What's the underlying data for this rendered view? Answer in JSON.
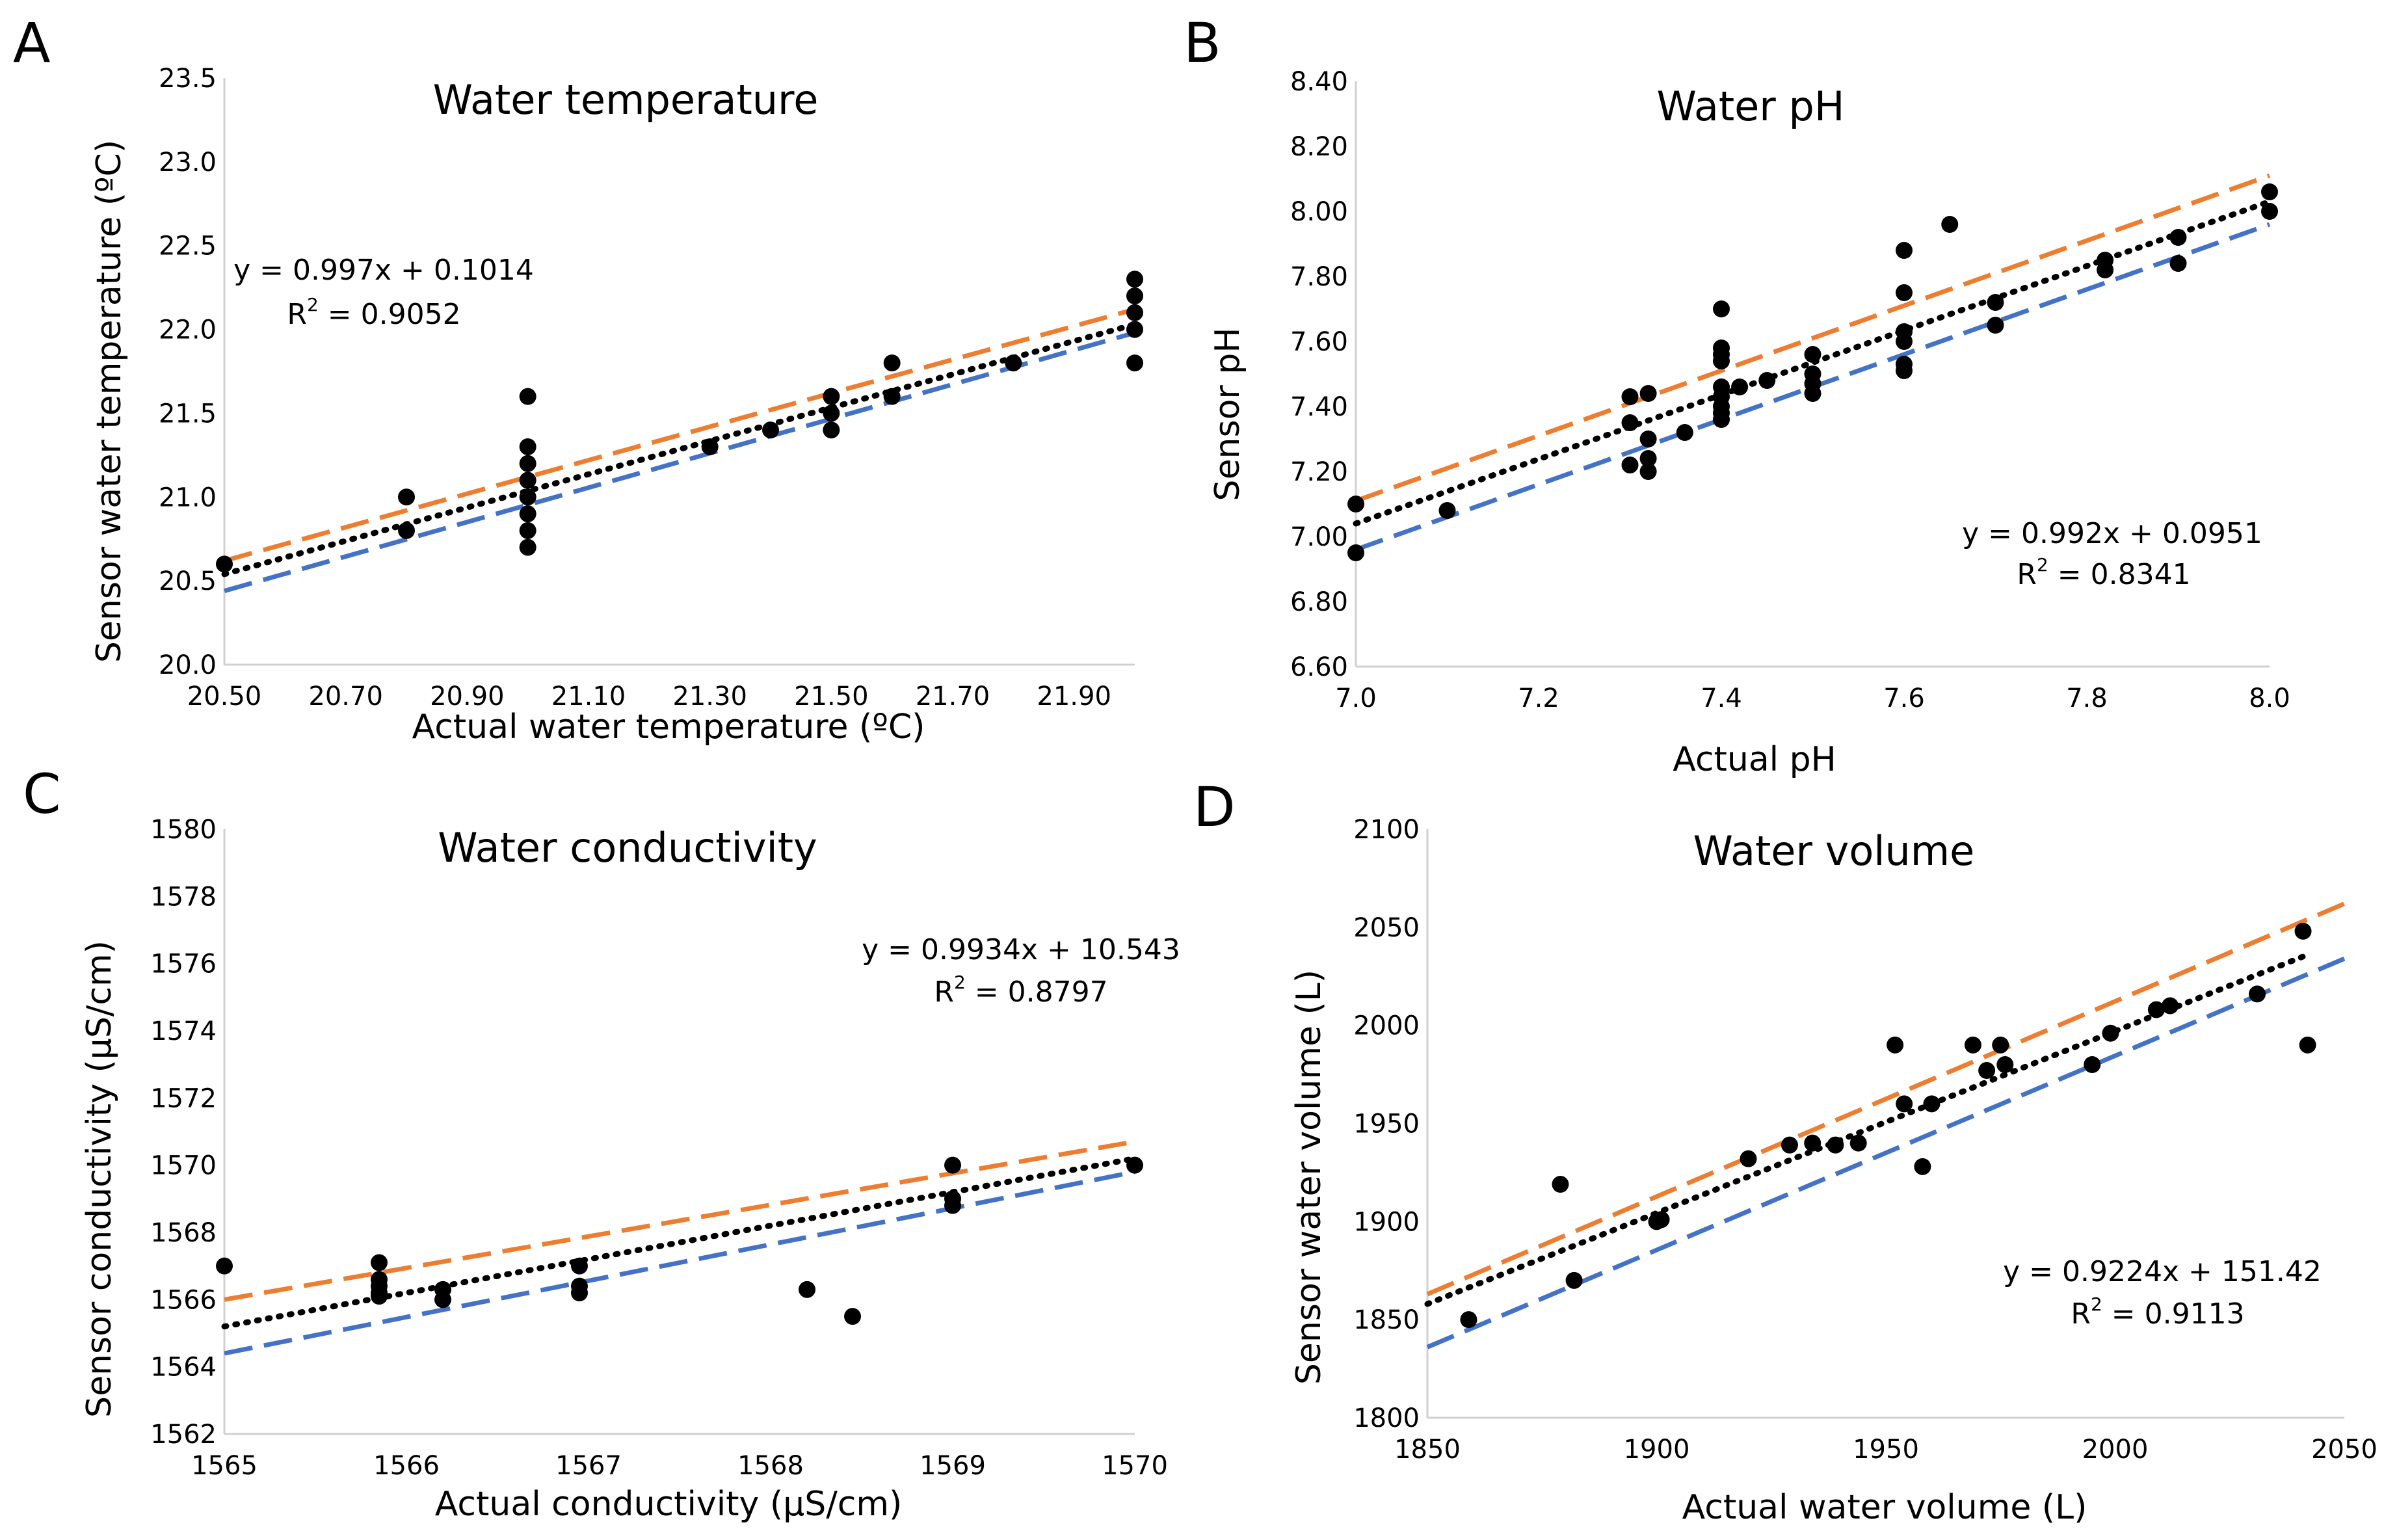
{
  "chart_data": [
    {
      "panel": "A",
      "type": "scatter",
      "title": "Water temperature",
      "xlabel": "Actual water temperature (ºC)",
      "ylabel": "Sensor water temperature (ºC)",
      "xlim": [
        20.5,
        22.0
      ],
      "ylim": [
        20.0,
        23.5
      ],
      "xticks": [
        20.5,
        20.7,
        20.9,
        21.1,
        21.3,
        21.5,
        21.7,
        21.9
      ],
      "xtick_labels": [
        "20.50",
        "20.70",
        "20.90",
        "21.10",
        "21.30",
        "21.50",
        "21.70",
        "21.90"
      ],
      "yticks": [
        20.0,
        20.5,
        21.0,
        21.5,
        22.0,
        22.5,
        23.0,
        23.5
      ],
      "ytick_labels": [
        "20.0",
        "20.5",
        "21.0",
        "21.5",
        "22.0",
        "22.5",
        "23.0",
        "23.5"
      ],
      "equation": "y = 0.997x + 0.1014",
      "r2_label": "R",
      "r2_sup": "2",
      "r2_value": " = 0.9052",
      "points": [
        [
          20.5,
          20.6
        ],
        [
          20.8,
          21.0
        ],
        [
          20.8,
          20.8
        ],
        [
          21.0,
          21.6
        ],
        [
          21.0,
          21.3
        ],
        [
          21.0,
          21.2
        ],
        [
          21.0,
          21.1
        ],
        [
          21.0,
          21.0
        ],
        [
          21.0,
          20.9
        ],
        [
          21.0,
          20.8
        ],
        [
          21.0,
          20.7
        ],
        [
          21.3,
          21.3
        ],
        [
          21.4,
          21.4
        ],
        [
          21.5,
          21.6
        ],
        [
          21.5,
          21.5
        ],
        [
          21.5,
          21.4
        ],
        [
          21.6,
          21.8
        ],
        [
          21.6,
          21.6
        ],
        [
          21.8,
          21.8
        ],
        [
          22.0,
          22.3
        ],
        [
          22.0,
          22.2
        ],
        [
          22.0,
          22.1
        ],
        [
          22.0,
          22.0
        ],
        [
          22.0,
          21.8
        ]
      ],
      "lines": [
        {
          "name": "upper bound",
          "color": "#ED7D31",
          "style": "dashed",
          "x": [
            20.5,
            22.0
          ],
          "y": [
            20.62,
            22.12
          ]
        },
        {
          "name": "trendline",
          "color": "#000000",
          "style": "dotted",
          "x": [
            20.5,
            22.0
          ],
          "y": [
            20.54,
            22.03
          ]
        },
        {
          "name": "lower bound",
          "color": "#4472C4",
          "style": "dashed",
          "x": [
            20.5,
            22.0
          ],
          "y": [
            20.44,
            21.98
          ]
        }
      ]
    },
    {
      "panel": "B",
      "type": "scatter",
      "title": "Water pH",
      "xlabel": "Actual pH",
      "ylabel": "Sensor pH",
      "xlim": [
        7.0,
        8.0
      ],
      "ylim": [
        6.6,
        8.4
      ],
      "xticks": [
        7.0,
        7.2,
        7.4,
        7.6,
        7.8,
        8.0
      ],
      "xtick_labels": [
        "7.0",
        "7.2",
        "7.4",
        "7.6",
        "7.8",
        "8.0"
      ],
      "yticks": [
        6.6,
        6.8,
        7.0,
        7.2,
        7.4,
        7.6,
        7.8,
        8.0,
        8.2,
        8.4
      ],
      "ytick_labels": [
        "6.60",
        "6.80",
        "7.00",
        "7.20",
        "7.40",
        "7.60",
        "7.80",
        "8.00",
        "8.20",
        "8.40"
      ],
      "equation": "y = 0.992x + 0.0951",
      "r2_label": "R",
      "r2_sup": "2",
      "r2_value": " = 0.8341",
      "points": [
        [
          7.0,
          7.1
        ],
        [
          7.0,
          6.95
        ],
        [
          7.1,
          7.08
        ],
        [
          7.3,
          7.43
        ],
        [
          7.3,
          7.35
        ],
        [
          7.3,
          7.22
        ],
        [
          7.32,
          7.44
        ],
        [
          7.32,
          7.3
        ],
        [
          7.32,
          7.24
        ],
        [
          7.32,
          7.2
        ],
        [
          7.36,
          7.32
        ],
        [
          7.4,
          7.7
        ],
        [
          7.4,
          7.58
        ],
        [
          7.4,
          7.56
        ],
        [
          7.4,
          7.54
        ],
        [
          7.4,
          7.46
        ],
        [
          7.4,
          7.43
        ],
        [
          7.4,
          7.4
        ],
        [
          7.4,
          7.38
        ],
        [
          7.4,
          7.36
        ],
        [
          7.42,
          7.46
        ],
        [
          7.45,
          7.48
        ],
        [
          7.5,
          7.56
        ],
        [
          7.5,
          7.5
        ],
        [
          7.5,
          7.47
        ],
        [
          7.5,
          7.44
        ],
        [
          7.6,
          7.88
        ],
        [
          7.6,
          7.75
        ],
        [
          7.6,
          7.63
        ],
        [
          7.6,
          7.6
        ],
        [
          7.6,
          7.53
        ],
        [
          7.6,
          7.51
        ],
        [
          7.65,
          7.96
        ],
        [
          7.7,
          7.72
        ],
        [
          7.7,
          7.65
        ],
        [
          7.82,
          7.85
        ],
        [
          7.82,
          7.82
        ],
        [
          7.9,
          7.92
        ],
        [
          7.9,
          7.84
        ],
        [
          8.0,
          8.06
        ],
        [
          8.0,
          8.0
        ]
      ],
      "lines": [
        {
          "name": "upper bound",
          "color": "#ED7D31",
          "style": "dashed",
          "x": [
            7.0,
            8.0
          ],
          "y": [
            7.11,
            8.11
          ]
        },
        {
          "name": "trendline",
          "color": "#000000",
          "style": "dotted",
          "x": [
            7.0,
            8.0
          ],
          "y": [
            7.04,
            8.03
          ]
        },
        {
          "name": "lower bound",
          "color": "#4472C4",
          "style": "dashed",
          "x": [
            7.0,
            8.0
          ],
          "y": [
            6.96,
            7.96
          ]
        }
      ]
    },
    {
      "panel": "C",
      "type": "scatter",
      "title": "Water conductivity",
      "xlabel": "Actual conductivity (µS/cm)",
      "ylabel": "Sensor conductivity (µS/cm)",
      "xlim": [
        1565,
        1570
      ],
      "ylim": [
        1562,
        1580
      ],
      "xticks": [
        1565,
        1566,
        1567,
        1568,
        1569,
        1570
      ],
      "xtick_labels": [
        "1565",
        "1566",
        "1567",
        "1568",
        "1569",
        "1570"
      ],
      "yticks": [
        1562,
        1564,
        1566,
        1568,
        1570,
        1572,
        1574,
        1576,
        1578,
        1580
      ],
      "ytick_labels": [
        "1562",
        "1564",
        "1566",
        "1568",
        "1570",
        "1572",
        "1574",
        "1576",
        "1578",
        "1580"
      ],
      "equation": "y = 0.9934x + 10.543",
      "r2_label": "R",
      "r2_sup": "2",
      "r2_value": " = 0.8797",
      "points": [
        [
          1565.0,
          1567.0
        ],
        [
          1565.85,
          1567.1
        ],
        [
          1565.85,
          1566.6
        ],
        [
          1565.85,
          1566.4
        ],
        [
          1565.85,
          1566.2
        ],
        [
          1565.85,
          1566.1
        ],
        [
          1566.2,
          1566.3
        ],
        [
          1566.2,
          1566.0
        ],
        [
          1566.95,
          1567.0
        ],
        [
          1566.95,
          1566.4
        ],
        [
          1566.95,
          1566.2
        ],
        [
          1568.2,
          1566.3
        ],
        [
          1568.45,
          1565.5
        ],
        [
          1569.0,
          1570.0
        ],
        [
          1569.0,
          1569.0
        ],
        [
          1569.0,
          1568.8
        ],
        [
          1570.0,
          1570.0
        ]
      ],
      "lines": [
        {
          "name": "upper bound",
          "color": "#ED7D31",
          "style": "dashed",
          "x": [
            1565,
            1570
          ],
          "y": [
            1566.0,
            1570.7
          ]
        },
        {
          "name": "trendline",
          "color": "#000000",
          "style": "dotted",
          "x": [
            1565,
            1570
          ],
          "y": [
            1565.2,
            1570.2
          ]
        },
        {
          "name": "lower bound",
          "color": "#4472C4",
          "style": "dashed",
          "x": [
            1565,
            1570
          ],
          "y": [
            1564.4,
            1569.8
          ]
        }
      ]
    },
    {
      "panel": "D",
      "type": "scatter",
      "title": "Water volume",
      "xlabel": "Actual water volume (L)",
      "ylabel": "Sensor water volume (L)",
      "xlim": [
        1850,
        2050
      ],
      "ylim": [
        1800,
        2100
      ],
      "xticks": [
        1850,
        1900,
        1950,
        2000,
        2050
      ],
      "xtick_labels": [
        "1850",
        "1900",
        "1950",
        "2000",
        "2050"
      ],
      "yticks": [
        1800,
        1850,
        1900,
        1950,
        2000,
        2050,
        2100
      ],
      "ytick_labels": [
        "1800",
        "1850",
        "1900",
        "1950",
        "2000",
        "2050",
        "2100"
      ],
      "equation": "y = 0.9224x + 151.42",
      "r2_label": "R",
      "r2_sup": "2",
      "r2_value": " = 0.9113",
      "points": [
        [
          1859,
          1850
        ],
        [
          1879,
          1919
        ],
        [
          1882,
          1870
        ],
        [
          1900,
          1900
        ],
        [
          1901,
          1901
        ],
        [
          1920,
          1932
        ],
        [
          1929,
          1939
        ],
        [
          1934,
          1940
        ],
        [
          1939,
          1939
        ],
        [
          1944,
          1940
        ],
        [
          1952,
          1990
        ],
        [
          1954,
          1960
        ],
        [
          1958,
          1928
        ],
        [
          1960,
          1960
        ],
        [
          1969,
          1990
        ],
        [
          1972,
          1977
        ],
        [
          1975,
          1990
        ],
        [
          1976,
          1980
        ],
        [
          1995,
          1980
        ],
        [
          1999,
          1996
        ],
        [
          2009,
          2008
        ],
        [
          2012,
          2010
        ],
        [
          2031,
          2016
        ],
        [
          2041,
          2048
        ],
        [
          2042,
          1990
        ]
      ],
      "lines": [
        {
          "name": "upper bound",
          "color": "#ED7D31",
          "style": "dashed",
          "x": [
            1850,
            2050
          ],
          "y": [
            1863,
            2062
          ]
        },
        {
          "name": "trendline",
          "color": "#000000",
          "style": "dotted",
          "x": [
            1850,
            2042
          ],
          "y": [
            1858,
            2036
          ]
        },
        {
          "name": "lower bound",
          "color": "#4472C4",
          "style": "dashed",
          "x": [
            1850,
            2050
          ],
          "y": [
            1836,
            2034
          ]
        }
      ]
    }
  ],
  "colors": {
    "points": "#000000",
    "upper": "#ED7D31",
    "trend": "#000000",
    "lower": "#4472C4"
  }
}
